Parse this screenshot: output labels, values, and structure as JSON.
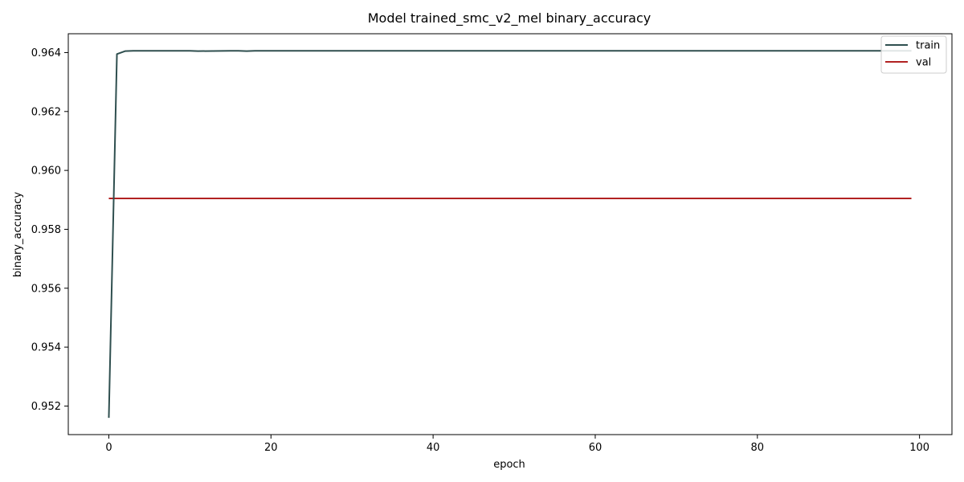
{
  "chart_data": {
    "type": "line",
    "title": "Model trained_smc_v2_mel binary_accuracy",
    "xlabel": "epoch",
    "ylabel": "binary_accuracy",
    "xlim": [
      -5,
      104
    ],
    "ylim": [
      0.95103,
      0.96464
    ],
    "x_ticks": [
      0,
      20,
      40,
      60,
      80,
      100
    ],
    "x_tick_labels": [
      "0",
      "20",
      "40",
      "60",
      "80",
      "100"
    ],
    "y_ticks": [
      0.952,
      0.954,
      0.956,
      0.958,
      0.96,
      0.962,
      0.964
    ],
    "y_tick_labels": [
      "0.952",
      "0.954",
      "0.956",
      "0.958",
      "0.960",
      "0.962",
      "0.964"
    ],
    "grid": false,
    "legend_position": "top-right",
    "series": [
      {
        "name": "train",
        "color": "#2f4f4f",
        "x": [
          0,
          1,
          2,
          3,
          10,
          11,
          15,
          16,
          17,
          18,
          20,
          30,
          40,
          50,
          60,
          70,
          80,
          90,
          99
        ],
        "y": [
          0.9516,
          0.96395,
          0.96405,
          0.96406,
          0.96406,
          0.96405,
          0.96406,
          0.96406,
          0.96405,
          0.96406,
          0.96406,
          0.96406,
          0.96406,
          0.96406,
          0.96406,
          0.96406,
          0.96406,
          0.96406,
          0.96406
        ]
      },
      {
        "name": "val",
        "color": "#b22222",
        "x": [
          0,
          99
        ],
        "y": [
          0.95905,
          0.95905
        ]
      }
    ]
  }
}
